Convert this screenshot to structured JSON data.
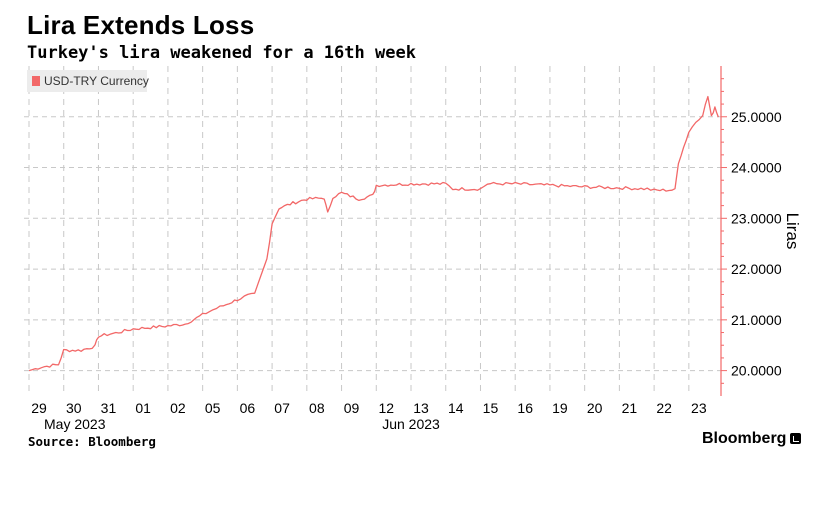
{
  "header": {
    "title": "Lira Extends Loss",
    "subtitle": "Turkey's lira weakened for a 16th week"
  },
  "footer": {
    "source": "Source: Bloomberg",
    "brand": "Bloomberg"
  },
  "colors": {
    "series": "#f26868",
    "grid": "#c8c8c8",
    "axis": "#f26868"
  },
  "chart_data": {
    "type": "line",
    "ylabel": "Liras",
    "ylim": [
      19.5,
      26.0
    ],
    "yticks": [
      20,
      21,
      22,
      23,
      24,
      25
    ],
    "ytick_labels": [
      "20.0000",
      "21.0000",
      "22.0000",
      "23.0000",
      "24.0000",
      "25.0000"
    ],
    "x_ticks": [
      "29",
      "30",
      "31",
      "01",
      "02",
      "05",
      "06",
      "07",
      "08",
      "09",
      "12",
      "13",
      "14",
      "15",
      "16",
      "19",
      "20",
      "21",
      "22",
      "23"
    ],
    "month_labels": [
      {
        "label": "May 2023",
        "at": "29"
      },
      {
        "label": "Jun 2023",
        "at": "13"
      }
    ],
    "legend": {
      "placement": "top-left"
    },
    "grid": {
      "x": true,
      "y": true
    },
    "series": [
      {
        "name": "USD-TRY Currency",
        "points": [
          {
            "t": 0.0,
            "v": 20.0
          },
          {
            "t": 0.35,
            "v": 20.07
          },
          {
            "t": 0.85,
            "v": 20.12
          },
          {
            "t": 1.0,
            "v": 20.4
          },
          {
            "t": 1.5,
            "v": 20.4
          },
          {
            "t": 1.9,
            "v": 20.48
          },
          {
            "t": 2.0,
            "v": 20.68
          },
          {
            "t": 2.5,
            "v": 20.74
          },
          {
            "t": 3.0,
            "v": 20.82
          },
          {
            "t": 3.5,
            "v": 20.85
          },
          {
            "t": 4.0,
            "v": 20.88
          },
          {
            "t": 4.5,
            "v": 20.92
          },
          {
            "t": 5.0,
            "v": 21.1
          },
          {
            "t": 5.3,
            "v": 21.2
          },
          {
            "t": 5.6,
            "v": 21.28
          },
          {
            "t": 6.0,
            "v": 21.4
          },
          {
            "t": 6.3,
            "v": 21.48
          },
          {
            "t": 6.5,
            "v": 21.5
          },
          {
            "t": 6.7,
            "v": 21.9
          },
          {
            "t": 6.85,
            "v": 22.2
          },
          {
            "t": 7.0,
            "v": 22.9
          },
          {
            "t": 7.2,
            "v": 23.2
          },
          {
            "t": 7.6,
            "v": 23.3
          },
          {
            "t": 8.0,
            "v": 23.38
          },
          {
            "t": 8.5,
            "v": 23.4
          },
          {
            "t": 8.6,
            "v": 23.1
          },
          {
            "t": 8.75,
            "v": 23.42
          },
          {
            "t": 9.0,
            "v": 23.5
          },
          {
            "t": 9.5,
            "v": 23.38
          },
          {
            "t": 9.9,
            "v": 23.45
          },
          {
            "t": 10.0,
            "v": 23.65
          },
          {
            "t": 11.0,
            "v": 23.68
          },
          {
            "t": 12.0,
            "v": 23.68
          },
          {
            "t": 12.2,
            "v": 23.58
          },
          {
            "t": 13.0,
            "v": 23.58
          },
          {
            "t": 13.2,
            "v": 23.68
          },
          {
            "t": 14.0,
            "v": 23.68
          },
          {
            "t": 15.0,
            "v": 23.65
          },
          {
            "t": 16.0,
            "v": 23.62
          },
          {
            "t": 17.0,
            "v": 23.6
          },
          {
            "t": 17.8,
            "v": 23.58
          },
          {
            "t": 18.0,
            "v": 23.55
          },
          {
            "t": 18.6,
            "v": 23.56
          },
          {
            "t": 18.7,
            "v": 24.1
          },
          {
            "t": 18.85,
            "v": 24.4
          },
          {
            "t": 19.0,
            "v": 24.7
          },
          {
            "t": 19.2,
            "v": 24.9
          },
          {
            "t": 19.4,
            "v": 25.05
          },
          {
            "t": 19.55,
            "v": 25.4
          },
          {
            "t": 19.65,
            "v": 25.0
          },
          {
            "t": 19.75,
            "v": 25.2
          },
          {
            "t": 19.85,
            "v": 25.0
          }
        ]
      }
    ]
  }
}
